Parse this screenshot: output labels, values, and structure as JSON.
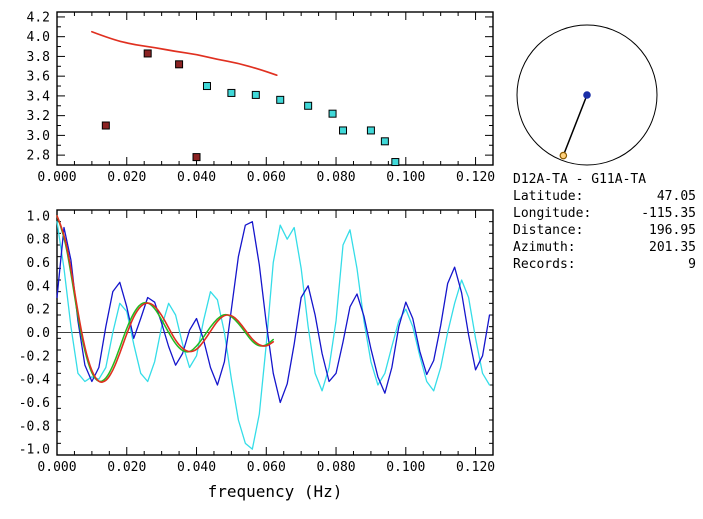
{
  "background": "#ffffff",
  "info_panel": {
    "title": "D12A-TA - G11A-TA",
    "rows": [
      {
        "label": "Latitude:",
        "value": "47.05"
      },
      {
        "label": "Longitude:",
        "value": "-115.35"
      },
      {
        "label": "Distance:",
        "value": "196.95"
      },
      {
        "label": "Azimuth:",
        "value": "201.35"
      },
      {
        "label": "Records:",
        "value": "9"
      }
    ]
  },
  "map": {
    "azimuth_deg": 201.35,
    "circle_color": "#000000",
    "center_dot_color": "#1b2fa8",
    "line_color": "#000000",
    "end_marker_fill": "#ffd27f",
    "end_marker_stroke": "#8a5a00"
  },
  "chart_data": [
    {
      "type": "scatter",
      "name": "group-velocity-dispersion",
      "title": "",
      "xlabel": "",
      "ylabel": "",
      "grid": false,
      "legend": "none",
      "xlim": [
        0,
        0.125
      ],
      "ylim": [
        2.7,
        4.25
      ],
      "x_minor_step": 0.005,
      "y_minor_step": 0.1,
      "xtick_values": [
        0.0,
        0.02,
        0.04,
        0.06,
        0.08,
        0.1,
        0.12
      ],
      "xtick_labels": [
        "0.000",
        "0.020",
        "0.040",
        "0.060",
        "0.080",
        "0.100",
        "0.120"
      ],
      "ytick_values": [
        2.8,
        3.0,
        3.2,
        3.4,
        3.6,
        3.8,
        4.0,
        4.2
      ],
      "ytick_labels": [
        "2.8",
        "3.0",
        "3.2",
        "3.4",
        "3.6",
        "3.8",
        "4.0",
        "4.2"
      ],
      "series": [
        {
          "name": "reference-model-curve",
          "type": "line",
          "color": "#e03020",
          "width": 1.7,
          "smooth": true,
          "points": [
            [
              0.01,
              4.05
            ],
            [
              0.016,
              3.97
            ],
            [
              0.022,
              3.92
            ],
            [
              0.028,
              3.89
            ],
            [
              0.034,
              3.85
            ],
            [
              0.04,
              3.82
            ],
            [
              0.046,
              3.77
            ],
            [
              0.052,
              3.73
            ],
            [
              0.058,
              3.67
            ],
            [
              0.063,
              3.61
            ]
          ]
        },
        {
          "name": "rejected-dispersion-picks",
          "type": "scatter",
          "marker": "square",
          "color": "#8b2323",
          "edge": "#000000",
          "points": [
            [
              0.014,
              3.1
            ],
            [
              0.026,
              3.83
            ],
            [
              0.035,
              3.72
            ],
            [
              0.04,
              2.78
            ]
          ]
        },
        {
          "name": "accepted-dispersion-picks",
          "type": "scatter",
          "marker": "square",
          "color": "#40d8d8",
          "edge": "#000000",
          "points": [
            [
              0.043,
              3.5
            ],
            [
              0.05,
              3.43
            ],
            [
              0.057,
              3.41
            ],
            [
              0.064,
              3.36
            ],
            [
              0.072,
              3.3
            ],
            [
              0.079,
              3.22
            ],
            [
              0.082,
              3.05
            ],
            [
              0.09,
              3.05
            ],
            [
              0.094,
              2.94
            ],
            [
              0.097,
              2.73
            ]
          ]
        }
      ]
    },
    {
      "type": "line",
      "name": "coherency-spectra",
      "title": "",
      "xlabel": "frequency (Hz)",
      "ylabel": "",
      "grid": false,
      "legend": "none",
      "zero_line": true,
      "xlim": [
        0,
        0.125
      ],
      "ylim": [
        -1.05,
        1.05
      ],
      "x_minor_step": 0.005,
      "y_minor_step": 0.1,
      "xtick_values": [
        0.0,
        0.02,
        0.04,
        0.06,
        0.08,
        0.1,
        0.12
      ],
      "xtick_labels": [
        "0.000",
        "0.020",
        "0.040",
        "0.060",
        "0.080",
        "0.100",
        "0.120"
      ],
      "ytick_values": [
        -1.0,
        -0.8,
        -0.6,
        -0.4,
        -0.2,
        0.0,
        0.2,
        0.4,
        0.6,
        0.8,
        1.0
      ],
      "ytick_labels": [
        "-1.0",
        "-0.8",
        "-0.6",
        "-0.4",
        "-0.2",
        "0.0",
        "0.2",
        "0.4",
        "0.6",
        "0.8",
        "1.0"
      ],
      "series": [
        {
          "name": "observed-coherency-cyan",
          "type": "line",
          "color": "#35dde8",
          "width": 1.3,
          "x_start": 0,
          "x_step": 0.002,
          "values": [
            0.95,
            0.55,
            0.05,
            -0.35,
            -0.42,
            -0.38,
            -0.4,
            -0.3,
            0.0,
            0.25,
            0.18,
            -0.1,
            -0.35,
            -0.42,
            -0.25,
            0.05,
            0.25,
            0.15,
            -0.1,
            -0.3,
            -0.2,
            0.1,
            0.35,
            0.28,
            0.0,
            -0.4,
            -0.75,
            -0.95,
            -1.0,
            -0.7,
            -0.1,
            0.6,
            0.92,
            0.8,
            0.9,
            0.55,
            0.05,
            -0.35,
            -0.5,
            -0.3,
            0.1,
            0.75,
            0.88,
            0.55,
            0.1,
            -0.25,
            -0.45,
            -0.35,
            -0.12,
            0.1,
            0.2,
            0.05,
            -0.2,
            -0.42,
            -0.5,
            -0.3,
            0.0,
            0.25,
            0.45,
            0.3,
            -0.05,
            -0.35,
            -0.45
          ]
        },
        {
          "name": "observed-coherency-blue",
          "type": "line",
          "color": "#1515cc",
          "width": 1.3,
          "x_start": 0,
          "x_step": 0.002,
          "values": [
            0.3,
            0.9,
            0.62,
            0.1,
            -0.28,
            -0.42,
            -0.3,
            0.05,
            0.35,
            0.43,
            0.22,
            -0.05,
            0.12,
            0.3,
            0.26,
            0.08,
            -0.12,
            -0.28,
            -0.18,
            0.02,
            0.12,
            -0.06,
            -0.3,
            -0.45,
            -0.25,
            0.2,
            0.65,
            0.92,
            0.95,
            0.58,
            0.08,
            -0.35,
            -0.6,
            -0.44,
            -0.1,
            0.3,
            0.4,
            0.15,
            -0.18,
            -0.42,
            -0.35,
            -0.08,
            0.22,
            0.33,
            0.14,
            -0.14,
            -0.38,
            -0.52,
            -0.3,
            0.05,
            0.26,
            0.12,
            -0.16,
            -0.36,
            -0.24,
            0.06,
            0.42,
            0.56,
            0.34,
            -0.02,
            -0.32,
            -0.2,
            0.15
          ]
        },
        {
          "name": "fitted-bessel-green",
          "type": "line",
          "color": "#22bb22",
          "width": 1.5,
          "smooth": true,
          "x_start": 0,
          "x_step": 0.002,
          "values": [
            1.0,
            0.84,
            0.51,
            0.13,
            -0.17,
            -0.36,
            -0.43,
            -0.4,
            -0.29,
            -0.13,
            0.04,
            0.17,
            0.25,
            0.26,
            0.21,
            0.11,
            0.0,
            -0.1,
            -0.16,
            -0.17,
            -0.12,
            -0.04,
            0.05,
            0.12,
            0.16,
            0.14,
            0.08,
            0.0,
            -0.08,
            -0.12,
            -0.11,
            -0.06
          ]
        },
        {
          "name": "predicted-bessel-red",
          "type": "line",
          "color": "#e03020",
          "width": 1.6,
          "smooth": true,
          "x_start": 0,
          "x_step": 0.002,
          "values": [
            1.0,
            0.86,
            0.55,
            0.17,
            -0.14,
            -0.34,
            -0.43,
            -0.42,
            -0.33,
            -0.18,
            -0.01,
            0.14,
            0.23,
            0.26,
            0.23,
            0.15,
            0.04,
            -0.07,
            -0.14,
            -0.17,
            -0.15,
            -0.08,
            0.01,
            0.1,
            0.15,
            0.15,
            0.1,
            0.02,
            -0.06,
            -0.11,
            -0.12,
            -0.08
          ]
        }
      ]
    }
  ]
}
